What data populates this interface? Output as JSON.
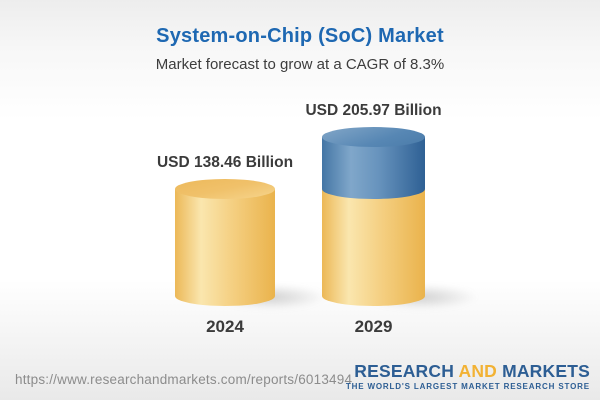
{
  "header": {
    "title": "System-on-Chip (SoC) Market",
    "subtitle": "Market forecast to grow at a CAGR of 8.3%"
  },
  "chart_data": {
    "type": "bar",
    "title": "System-on-Chip (SoC) Market",
    "subtitle": "Market forecast to grow at a CAGR of 8.3%",
    "unit": "USD Billion",
    "categories": [
      "2024",
      "2029"
    ],
    "values": [
      138.46,
      205.97
    ],
    "value_labels": [
      "USD 138.46 Billion",
      "USD 205.97 Billion"
    ],
    "cagr_percent": 8.3,
    "bar_style": "3d-cylinder",
    "legend_position": "none",
    "grid": false,
    "colors": {
      "base_segment": "#f0c26a",
      "growth_segment": "#4f80ae",
      "title_text": "#1e68b2",
      "label_text": "#3b3b3b"
    }
  },
  "footer": {
    "report_url": "https://www.researchandmarkets.com/reports/6013494",
    "logo": {
      "research": "RESEARCH",
      "and": "AND",
      "markets": "MARKETS",
      "tagline": "THE WORLD'S LARGEST MARKET RESEARCH STORE"
    }
  }
}
